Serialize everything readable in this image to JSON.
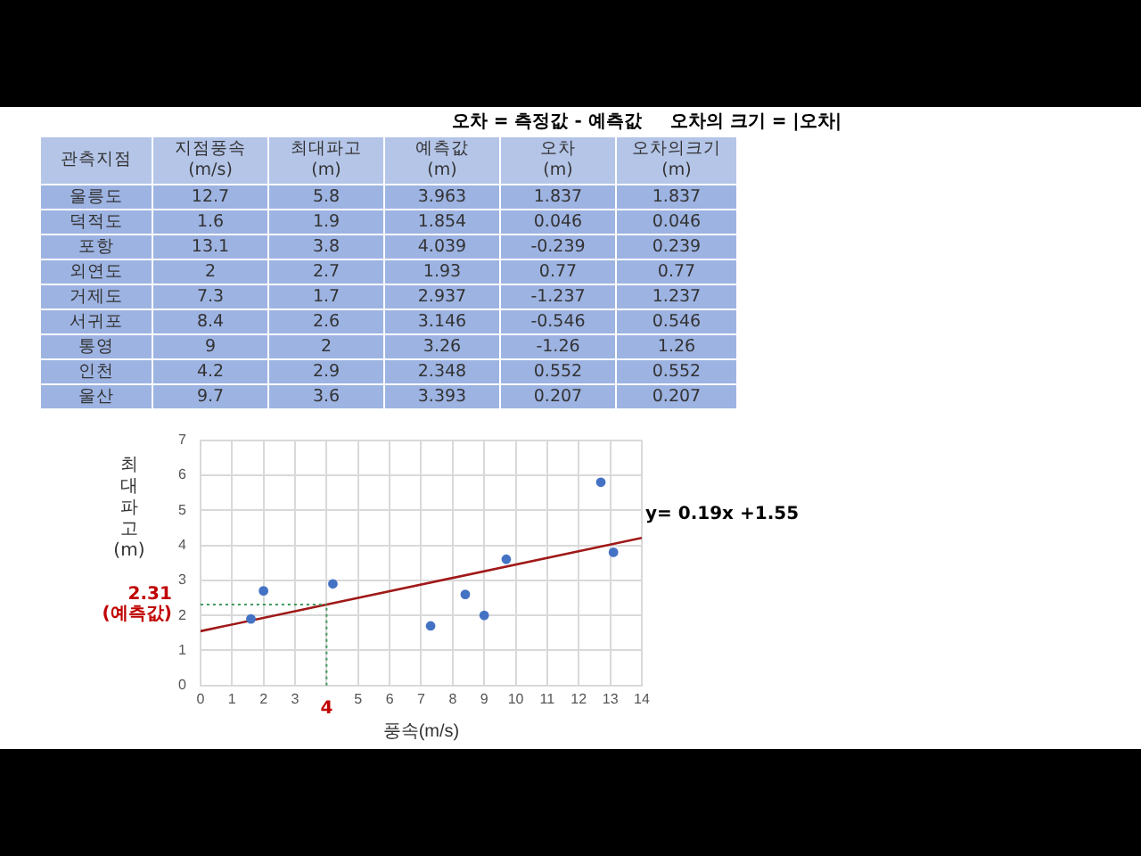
{
  "chart_data": [
    {
      "type": "other",
      "annotations": [
        "오차 = 측정값 - 예측값",
        "오차의 크기 = |오차|"
      ],
      "categories": [
        "관측지점",
        "지점풍속 (m/s)",
        "최대파고 (m)",
        "예측값 (m)",
        "오차 (m)",
        "오차의크기 (m)"
      ],
      "cell_labels": [
        [
          "울릉도",
          "12.7",
          "5.8",
          "3.963",
          "1.837",
          "1.837"
        ],
        [
          "덕적도",
          "1.6",
          "1.9",
          "1.854",
          "0.046",
          "0.046"
        ],
        [
          "포항",
          "13.1",
          "3.8",
          "4.039",
          "-0.239",
          "0.239"
        ],
        [
          "외연도",
          "2",
          "2.7",
          "1.93",
          "0.77",
          "0.77"
        ],
        [
          "거제도",
          "7.3",
          "1.7",
          "2.937",
          "-1.237",
          "1.237"
        ],
        [
          "서귀포",
          "8.4",
          "2.6",
          "3.146",
          "-0.546",
          "0.546"
        ],
        [
          "통영",
          "9",
          "2",
          "3.26",
          "-1.26",
          "1.26"
        ],
        [
          "인천",
          "4.2",
          "2.9",
          "2.348",
          "0.552",
          "0.552"
        ],
        [
          "울산",
          "9.7",
          "3.6",
          "3.393",
          "0.207",
          "0.207"
        ]
      ]
    },
    {
      "type": "scatter",
      "xlabel": "풍속(m/s)",
      "ylabel": "최대파고(m)",
      "xlim": [
        0,
        14
      ],
      "xticks": [
        0,
        1,
        2,
        3,
        {
          "value": 4,
          "label": null
        },
        5,
        6,
        7,
        8,
        9,
        10,
        11,
        12,
        13,
        14
      ],
      "ylim": [
        0,
        7
      ],
      "yticks": [
        0,
        1,
        2,
        3,
        4,
        5,
        6,
        7
      ],
      "grid": true,
      "legend": false,
      "marker": "circle",
      "series": [
        {
          "type": "scatter",
          "color": "#4472c4",
          "x": [
            12.7,
            1.6,
            13.1,
            2,
            7.3,
            8.4,
            9,
            4.2,
            9.7
          ],
          "values": [
            5.8,
            1.9,
            3.8,
            2.7,
            1.7,
            2.6,
            2,
            2.9,
            3.6
          ]
        },
        {
          "type": "line",
          "color": "#a01818",
          "marker": "none",
          "line_style": "solid",
          "x": [
            0,
            14
          ],
          "values": [
            1.55,
            4.21
          ]
        }
      ],
      "ref_lines": [
        {
          "axis": "x",
          "value": 4,
          "label": "4",
          "color": "#3c9a5a",
          "line_style": "dotted"
        },
        {
          "axis": "y",
          "value": 2.31,
          "label": "2.31 (예측값)",
          "color": "#3c9a5a",
          "line_style": "dotted"
        }
      ],
      "annotations": [
        {
          "text": "y= 0.19x +1.55",
          "x": 14,
          "y": 4.21
        }
      ]
    }
  ]
}
